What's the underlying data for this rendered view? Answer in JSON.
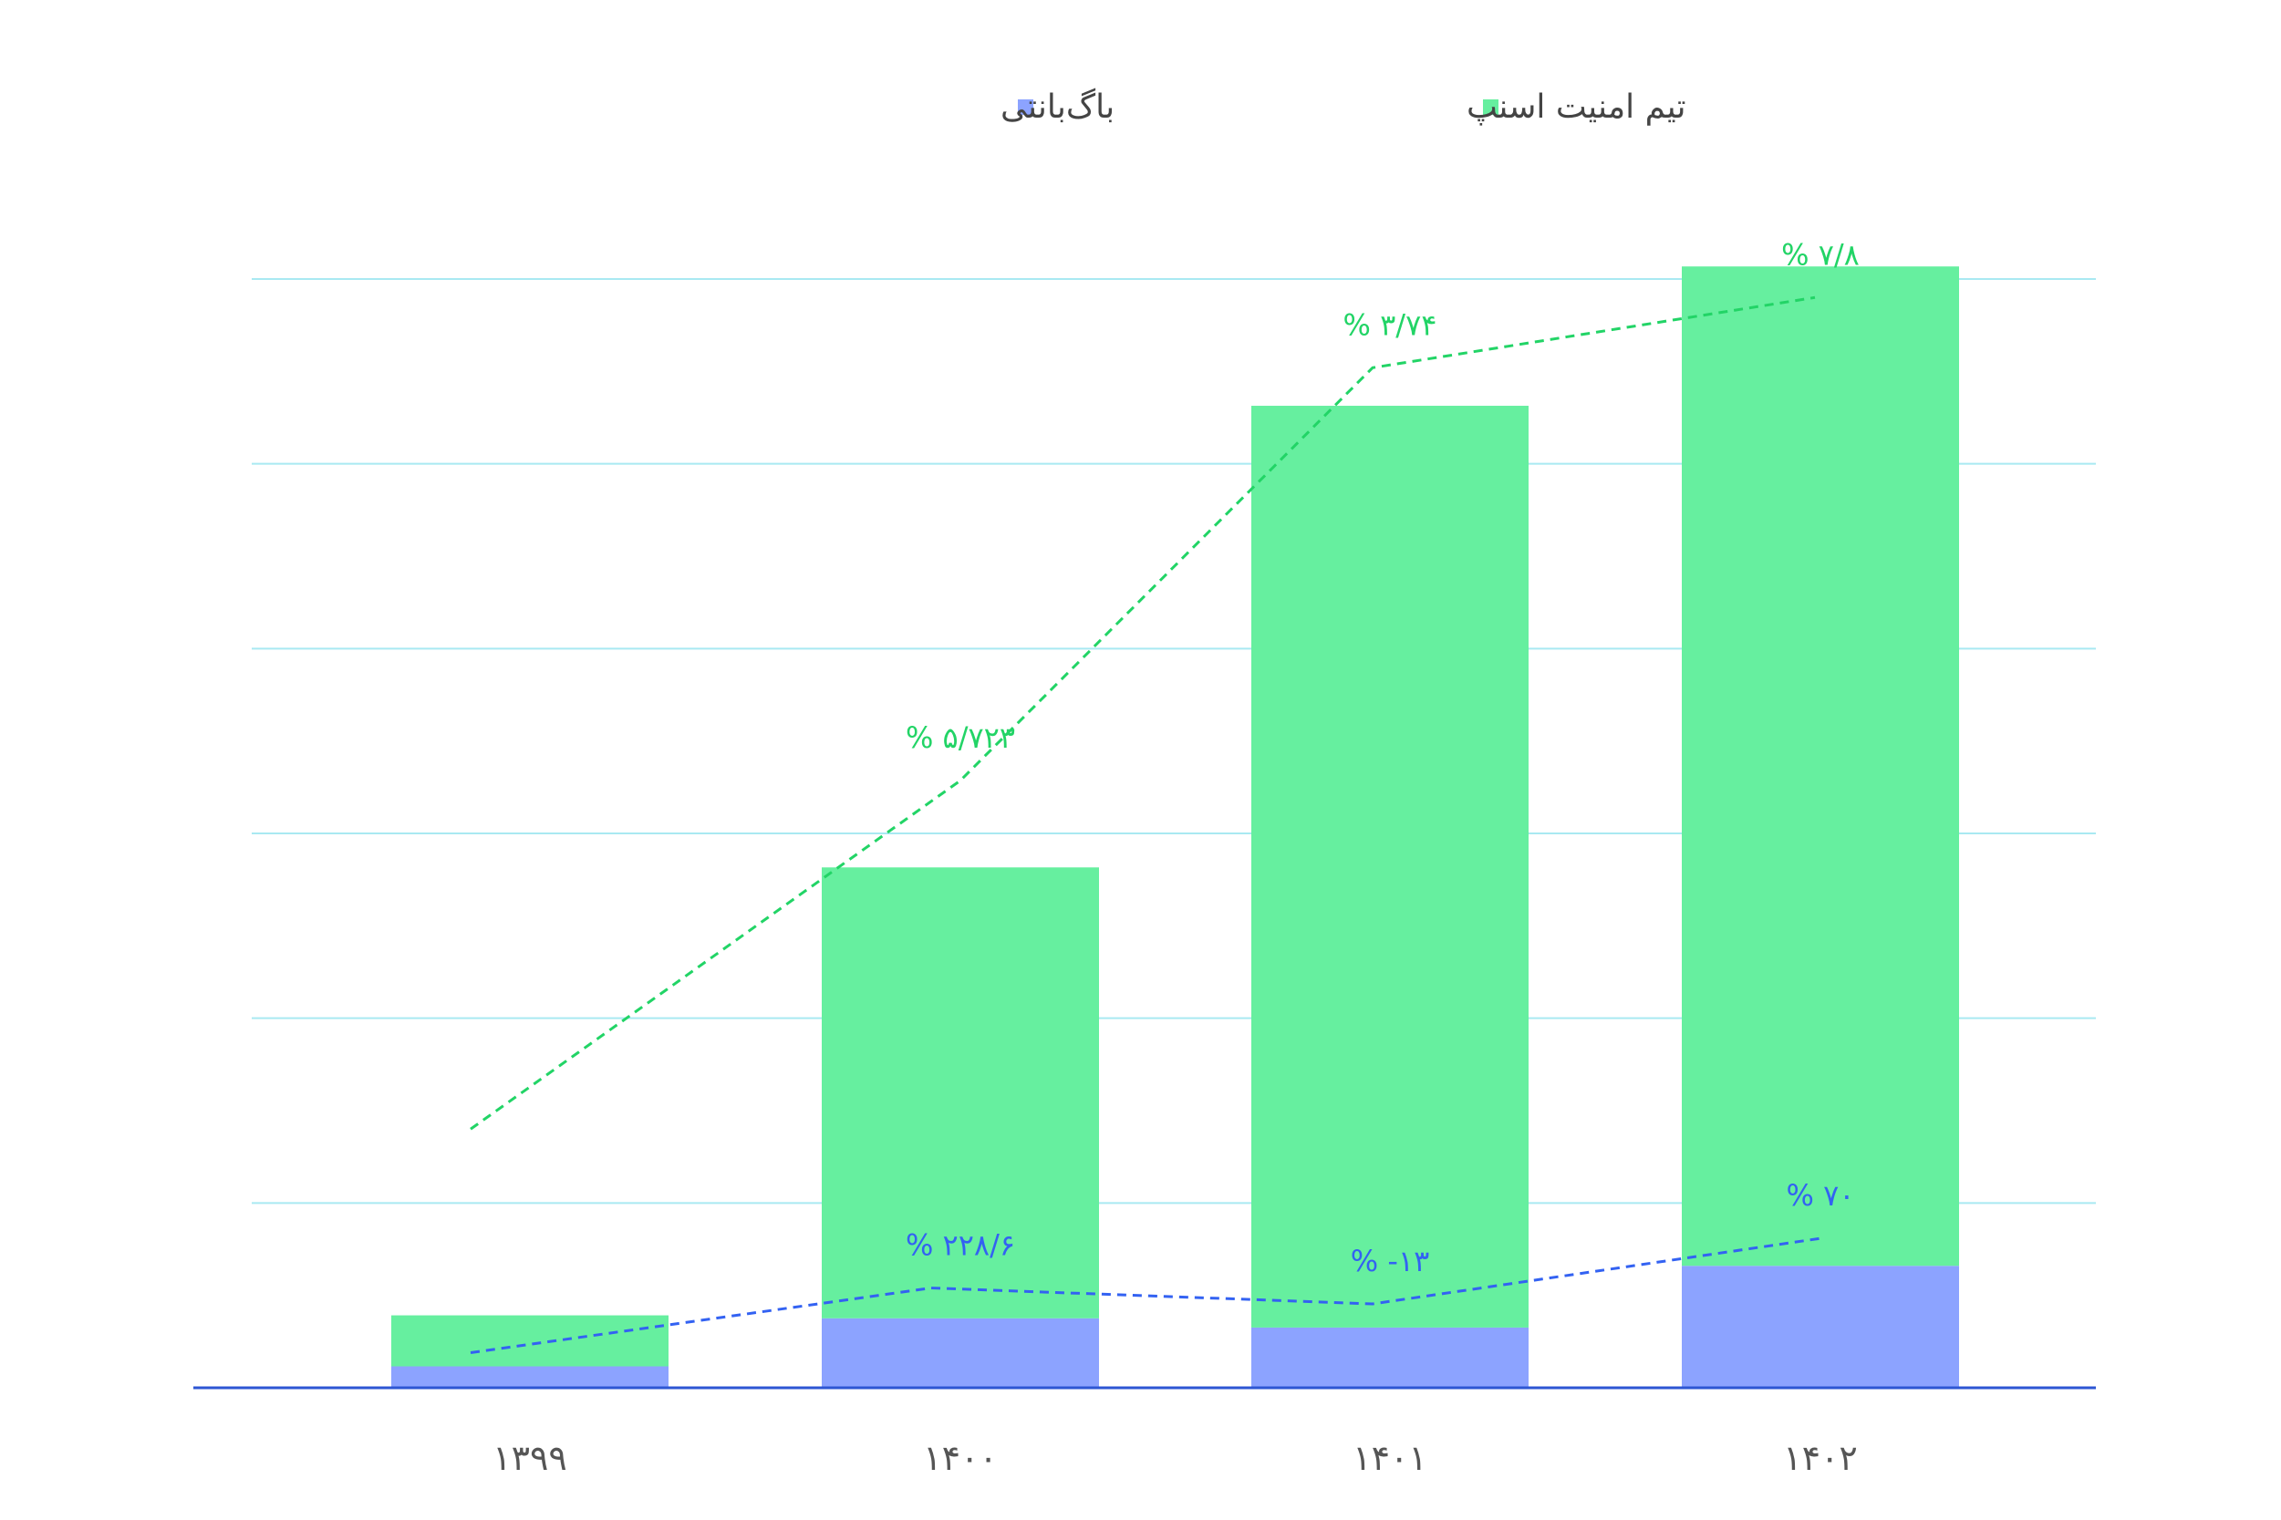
{
  "chart_data": {
    "type": "bar",
    "stacked": true,
    "categories": [
      "۱۳۹۹",
      "۱۴۰۰",
      "۱۴۰۱",
      "۱۴۰۲"
    ],
    "series": [
      {
        "name": "باگ‌بانتی",
        "color": "#8ca3ff",
        "values": [
          5.8,
          18.8,
          16.3,
          33.0
        ]
      },
      {
        "name": "تیم امنیت اسنپ",
        "color": "#66ef9f",
        "values": [
          13.8,
          122.0,
          249.4,
          270.4
        ]
      }
    ],
    "growth_lines": [
      {
        "series": "تیم امنیت اسنپ",
        "color": "#22d466",
        "values": [
          70.0,
          164.3,
          276.0,
          295.0
        ],
        "labels": [
          "",
          "% ۵/۷۲۳",
          "% ۳/۷۴",
          "% ۷/۸"
        ]
      },
      {
        "series": "باگ‌بانتی",
        "color": "#3362f2",
        "values": [
          9.5,
          27.0,
          22.7,
          40.5
        ],
        "labels": [
          "",
          "% ۲۲۸/۶",
          "% -۱۳",
          "% ۷۰"
        ]
      }
    ],
    "ylim": [
      0,
      300
    ],
    "grid": true,
    "legend": "top-center",
    "axis_color": "#2d56d3",
    "grid_color": "#a9e9f2"
  }
}
